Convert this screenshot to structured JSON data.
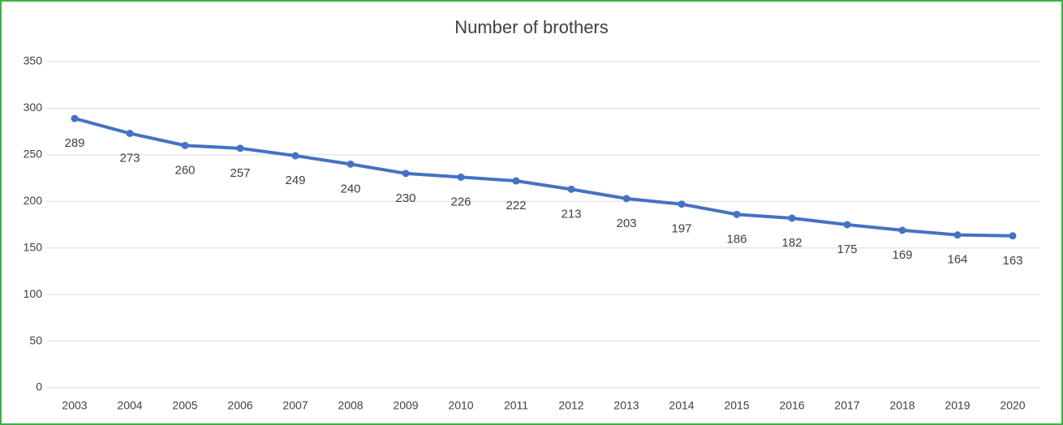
{
  "chart_data": {
    "type": "line",
    "title": "Number of brothers",
    "categories": [
      "2003",
      "2004",
      "2005",
      "2006",
      "2007",
      "2008",
      "2009",
      "2010",
      "2011",
      "2012",
      "2013",
      "2014",
      "2015",
      "2016",
      "2017",
      "2018",
      "2019",
      "2020"
    ],
    "values": [
      289,
      273,
      260,
      257,
      249,
      240,
      230,
      226,
      222,
      213,
      203,
      197,
      186,
      182,
      175,
      169,
      164,
      163
    ],
    "color": "#4472c4",
    "ylim": [
      0,
      350
    ],
    "yticks": [
      0,
      50,
      100,
      150,
      200,
      250,
      300,
      350
    ],
    "grid": true
  }
}
